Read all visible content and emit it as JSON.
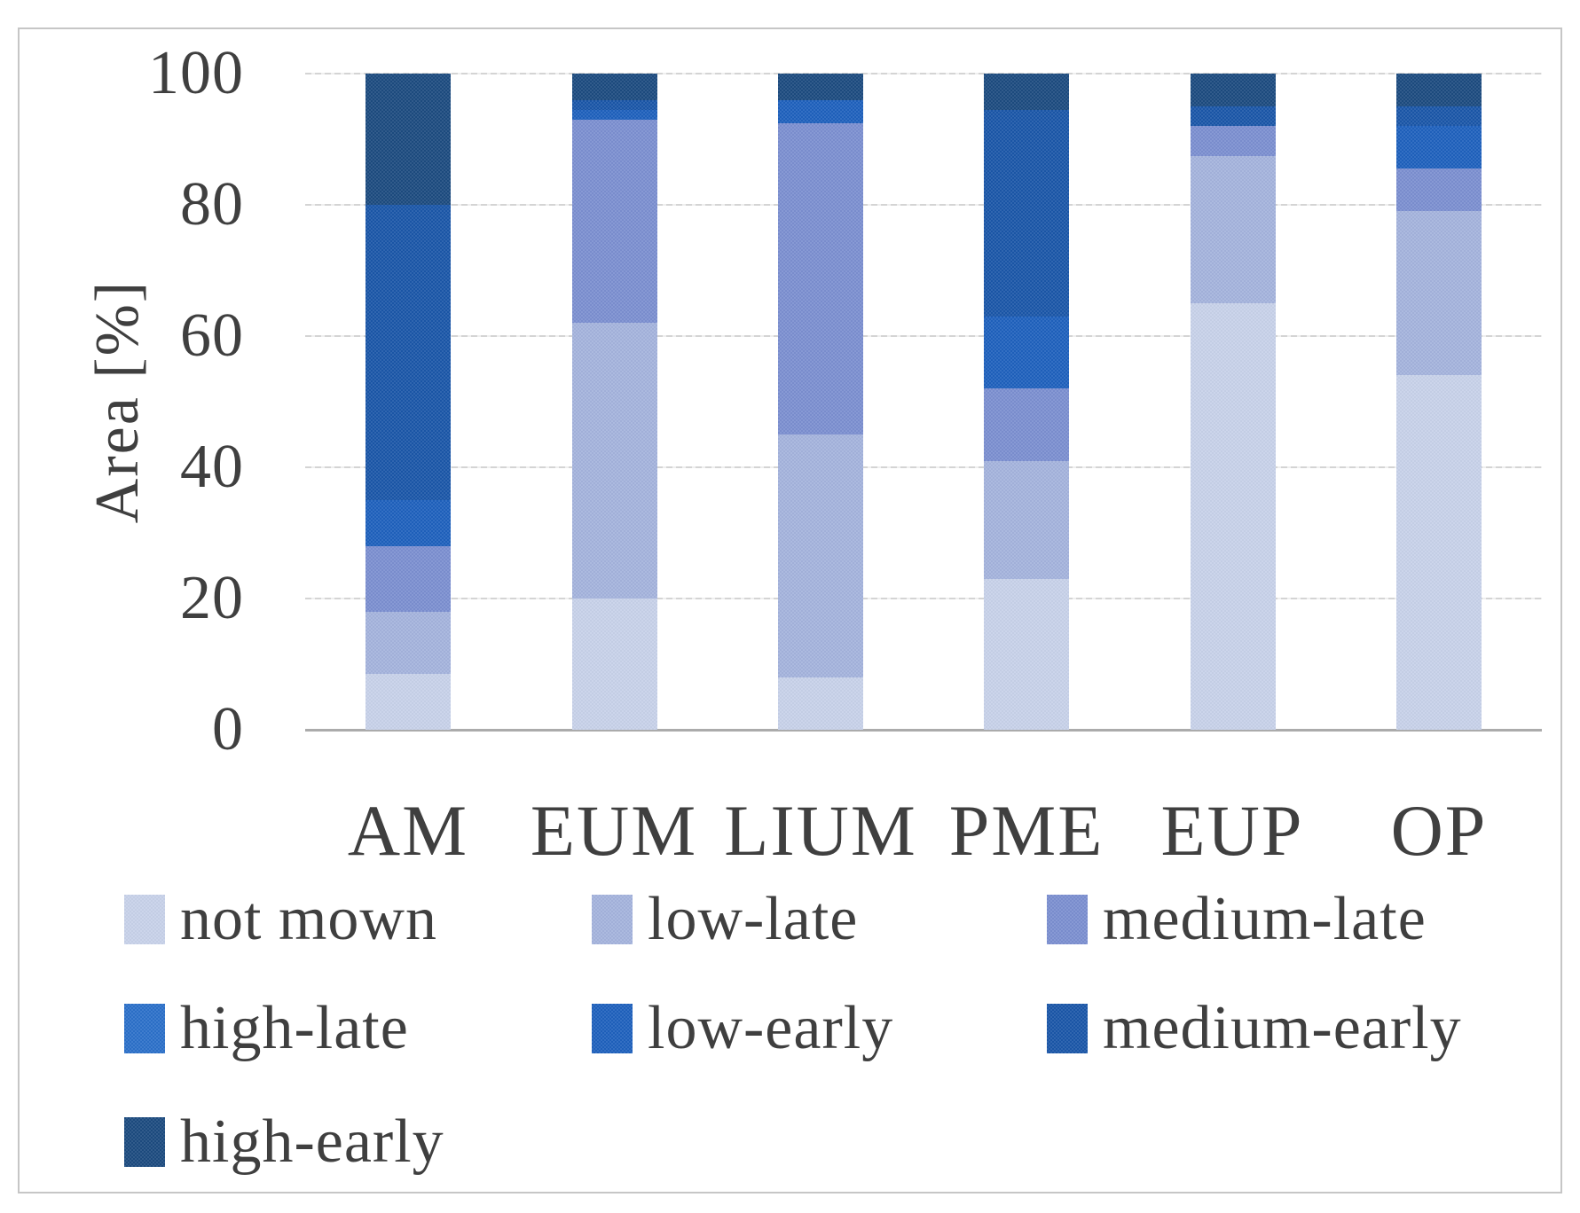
{
  "figure": {
    "background": "#ffffff",
    "border_color": "#c6c6c6",
    "text_color": "#3f3f3f"
  },
  "chart_data": {
    "type": "bar",
    "stacked": true,
    "title": "",
    "xlabel": "",
    "ylabel": "Area [%]",
    "ylim": [
      0,
      100
    ],
    "yticks": [
      0,
      20,
      40,
      60,
      80,
      100
    ],
    "ytick_labels": [
      "0",
      "20",
      "40",
      "60",
      "80",
      "100"
    ],
    "grid": true,
    "legend_position": "bottom",
    "categories": [
      "AM",
      "EUM",
      "LIUM",
      "PME",
      "EUP",
      "OP"
    ],
    "series": [
      {
        "name": "not mown",
        "color": "#c7d1e9",
        "values": [
          8.5,
          20,
          8,
          23,
          65,
          54
        ]
      },
      {
        "name": "low-late",
        "color": "#a4b3dc",
        "values": [
          9.5,
          42,
          37,
          18,
          22.5,
          25
        ]
      },
      {
        "name": "medium-late",
        "color": "#7b8fd0",
        "values": [
          10,
          31,
          47.5,
          11,
          4.5,
          6.5
        ]
      },
      {
        "name": "high-late",
        "color": "#2c70c9",
        "values": [
          0,
          0,
          0,
          0,
          0,
          0
        ]
      },
      {
        "name": "low-early",
        "color": "#1f61bd",
        "values": [
          7,
          1.5,
          3.5,
          11,
          0,
          6.5
        ]
      },
      {
        "name": "medium-early",
        "color": "#1b57a8",
        "values": [
          45,
          1.5,
          0,
          31.5,
          3,
          3
        ]
      },
      {
        "name": "high-early",
        "color": "#1d4b80",
        "values": [
          20,
          4,
          4,
          5.5,
          5,
          5
        ]
      }
    ]
  },
  "legend": {
    "items": [
      "not mown",
      "low-late",
      "medium-late",
      "high-late",
      "low-early",
      "medium-early",
      "high-early"
    ]
  }
}
